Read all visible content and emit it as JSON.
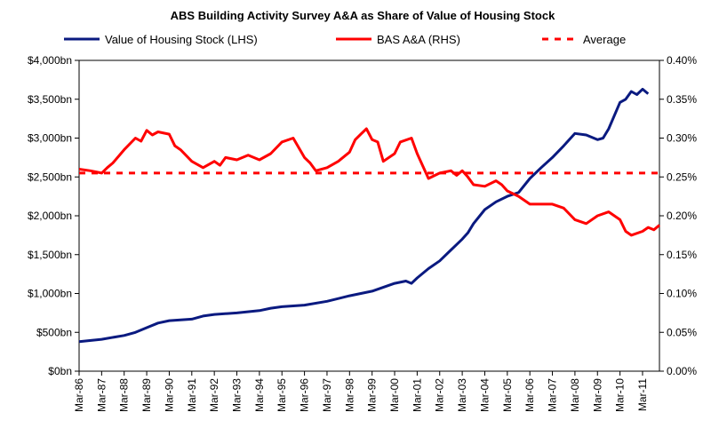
{
  "chart_data": {
    "type": "line",
    "title": "ABS Building Activity Survey A&A as Share of Value of Housing Stock",
    "colors": {
      "lhs": "#0a1a80",
      "rhs": "#ff0000",
      "average": "#ff0000"
    },
    "legend": {
      "placement": "top",
      "entries": [
        "Value of Housing Stock (LHS)",
        "BAS A&A (RHS)",
        "Average"
      ]
    },
    "x_tick_labels": [
      "Mar-86",
      "Mar-87",
      "Mar-88",
      "Mar-89",
      "Mar-90",
      "Mar-91",
      "Mar-92",
      "Mar-93",
      "Mar-94",
      "Mar-95",
      "Mar-96",
      "Mar-97",
      "Mar-98",
      "Mar-99",
      "Mar-00",
      "Mar-01",
      "Mar-02",
      "Mar-03",
      "Mar-04",
      "Mar-05",
      "Mar-06",
      "Mar-07",
      "Mar-08",
      "Mar-09",
      "Mar-10",
      "Mar-11"
    ],
    "y_left": {
      "min": 0,
      "max": 4000,
      "step": 500,
      "tick_labels": [
        "$0bn",
        "$500bn",
        "$1,000bn",
        "$1,500bn",
        "$2,000bn",
        "$2,500bn",
        "$3,000bn",
        "$3,500bn",
        "$4,000bn"
      ]
    },
    "y_right": {
      "min": 0,
      "max": 0.4,
      "step": 0.05,
      "tick_labels": [
        "0.00%",
        "0.05%",
        "0.10%",
        "0.15%",
        "0.20%",
        "0.25%",
        "0.30%",
        "0.35%",
        "0.40%"
      ]
    },
    "grid": false,
    "average_value": 0.255,
    "series": [
      {
        "name": "Value of Housing Stock (LHS)",
        "axis": "left",
        "points": [
          [
            1986.0,
            380
          ],
          [
            1987.0,
            410
          ],
          [
            1988.0,
            460
          ],
          [
            1988.5,
            500
          ],
          [
            1989.0,
            560
          ],
          [
            1989.5,
            620
          ],
          [
            1990.0,
            650
          ],
          [
            1991.0,
            670
          ],
          [
            1991.5,
            710
          ],
          [
            1992.0,
            730
          ],
          [
            1993.0,
            750
          ],
          [
            1994.0,
            780
          ],
          [
            1994.5,
            810
          ],
          [
            1995.0,
            830
          ],
          [
            1996.0,
            850
          ],
          [
            1997.0,
            900
          ],
          [
            1998.0,
            970
          ],
          [
            1999.0,
            1030
          ],
          [
            2000.0,
            1130
          ],
          [
            2000.5,
            1160
          ],
          [
            2000.75,
            1130
          ],
          [
            2001.0,
            1200
          ],
          [
            2001.5,
            1320
          ],
          [
            2002.0,
            1420
          ],
          [
            2002.5,
            1560
          ],
          [
            2003.0,
            1700
          ],
          [
            2003.25,
            1780
          ],
          [
            2003.5,
            1900
          ],
          [
            2004.0,
            2080
          ],
          [
            2004.5,
            2180
          ],
          [
            2005.0,
            2250
          ],
          [
            2005.5,
            2300
          ],
          [
            2006.0,
            2480
          ],
          [
            2006.5,
            2620
          ],
          [
            2007.0,
            2750
          ],
          [
            2007.5,
            2900
          ],
          [
            2008.0,
            3060
          ],
          [
            2008.5,
            3040
          ],
          [
            2009.0,
            2980
          ],
          [
            2009.25,
            3000
          ],
          [
            2009.5,
            3120
          ],
          [
            2010.0,
            3460
          ],
          [
            2010.25,
            3500
          ],
          [
            2010.5,
            3600
          ],
          [
            2010.75,
            3560
          ],
          [
            2011.0,
            3630
          ],
          [
            2011.25,
            3570
          ]
        ]
      },
      {
        "name": "BAS A&A (RHS)",
        "axis": "right",
        "points": [
          [
            1986.0,
            0.26
          ],
          [
            1986.5,
            0.258
          ],
          [
            1987.0,
            0.255
          ],
          [
            1987.25,
            0.262
          ],
          [
            1987.5,
            0.268
          ],
          [
            1988.0,
            0.285
          ],
          [
            1988.5,
            0.3
          ],
          [
            1988.75,
            0.296
          ],
          [
            1989.0,
            0.31
          ],
          [
            1989.25,
            0.304
          ],
          [
            1989.5,
            0.308
          ],
          [
            1990.0,
            0.305
          ],
          [
            1990.25,
            0.29
          ],
          [
            1990.5,
            0.285
          ],
          [
            1991.0,
            0.27
          ],
          [
            1991.5,
            0.262
          ],
          [
            1992.0,
            0.27
          ],
          [
            1992.25,
            0.265
          ],
          [
            1992.5,
            0.275
          ],
          [
            1993.0,
            0.272
          ],
          [
            1993.5,
            0.278
          ],
          [
            1994.0,
            0.272
          ],
          [
            1994.5,
            0.28
          ],
          [
            1995.0,
            0.295
          ],
          [
            1995.5,
            0.3
          ],
          [
            1996.0,
            0.275
          ],
          [
            1996.25,
            0.268
          ],
          [
            1996.5,
            0.258
          ],
          [
            1997.0,
            0.262
          ],
          [
            1997.5,
            0.27
          ],
          [
            1998.0,
            0.282
          ],
          [
            1998.25,
            0.298
          ],
          [
            1998.5,
            0.305
          ],
          [
            1998.75,
            0.312
          ],
          [
            1999.0,
            0.298
          ],
          [
            1999.25,
            0.295
          ],
          [
            1999.5,
            0.27
          ],
          [
            2000.0,
            0.28
          ],
          [
            2000.25,
            0.295
          ],
          [
            2000.75,
            0.3
          ],
          [
            2001.0,
            0.28
          ],
          [
            2001.5,
            0.248
          ],
          [
            2002.0,
            0.255
          ],
          [
            2002.5,
            0.258
          ],
          [
            2002.75,
            0.252
          ],
          [
            2003.0,
            0.258
          ],
          [
            2003.25,
            0.25
          ],
          [
            2003.5,
            0.24
          ],
          [
            2004.0,
            0.238
          ],
          [
            2004.5,
            0.245
          ],
          [
            2004.75,
            0.24
          ],
          [
            2005.0,
            0.232
          ],
          [
            2005.5,
            0.225
          ],
          [
            2006.0,
            0.215
          ],
          [
            2006.5,
            0.215
          ],
          [
            2007.0,
            0.215
          ],
          [
            2007.5,
            0.21
          ],
          [
            2008.0,
            0.195
          ],
          [
            2008.5,
            0.19
          ],
          [
            2009.0,
            0.2
          ],
          [
            2009.5,
            0.205
          ],
          [
            2010.0,
            0.195
          ],
          [
            2010.25,
            0.18
          ],
          [
            2010.5,
            0.175
          ],
          [
            2011.0,
            0.18
          ],
          [
            2011.25,
            0.185
          ],
          [
            2011.5,
            0.182
          ],
          [
            2011.75,
            0.188
          ]
        ]
      }
    ]
  }
}
